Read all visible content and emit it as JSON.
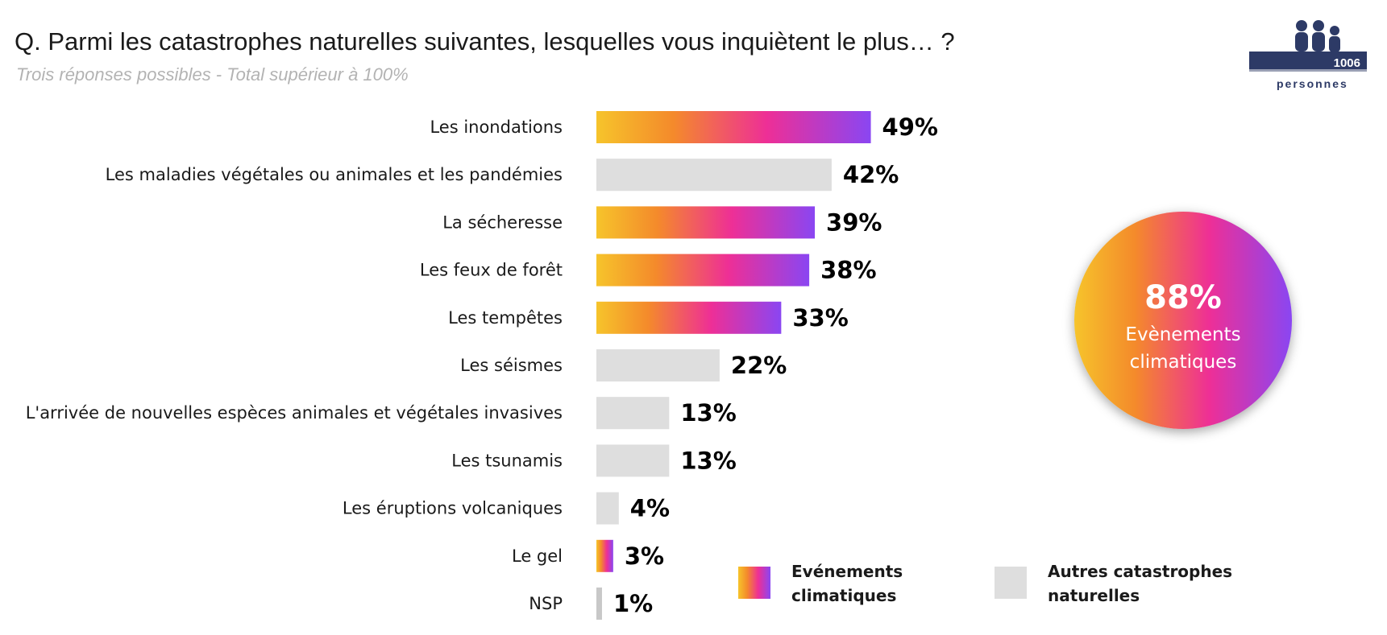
{
  "title": "Q. Parmi les catastrophes naturelles suivantes, lesquelles vous inquiètent le plus… ?",
  "subtitle": "Trois réponses possibles - Total supérieur à 100%",
  "logo": {
    "count": "1006",
    "label": "personnes",
    "icon": "people-icon"
  },
  "colors": {
    "climatic_gradient": [
      "#f6c42b",
      "#f48a2b",
      "#ee2f96",
      "#8a46f2"
    ],
    "other": "#dedede"
  },
  "chart_data": {
    "type": "bar",
    "orientation": "horizontal",
    "title": "Q. Parmi les catastrophes naturelles suivantes, lesquelles vous inquiètent le plus… ?",
    "subtitle": "Trois réponses possibles - Total supérieur à 100%",
    "unit": "%",
    "categories": [
      "Les inondations",
      "Les maladies végétales ou animales et les pandémies",
      "La sécheresse",
      "Les feux de forêt",
      "Les tempêtes",
      "Les séismes",
      "L'arrivée de nouvelles espèces animales et végétales invasives",
      "Les tsunamis",
      "Les éruptions volcaniques",
      "Le gel",
      "NSP"
    ],
    "values": [
      49,
      42,
      39,
      38,
      33,
      22,
      13,
      13,
      4,
      3,
      1
    ],
    "value_labels": [
      "49%",
      "42%",
      "39%",
      "38%",
      "33%",
      "22%",
      "13%",
      "13%",
      "4%",
      "3%",
      "1%"
    ],
    "groups": [
      "climatic",
      "other",
      "climatic",
      "climatic",
      "climatic",
      "other",
      "other",
      "other",
      "other",
      "climatic",
      "other"
    ],
    "xlim": [
      0,
      100
    ],
    "grid": false,
    "legend": {
      "placement": "bottom",
      "items": [
        {
          "key": "climatic",
          "label": "Evénements climatiques"
        },
        {
          "key": "other",
          "label": "Autres catastrophes naturelles"
        }
      ]
    },
    "highlight": {
      "value": "88%",
      "label": "Evènements climatiques"
    }
  }
}
